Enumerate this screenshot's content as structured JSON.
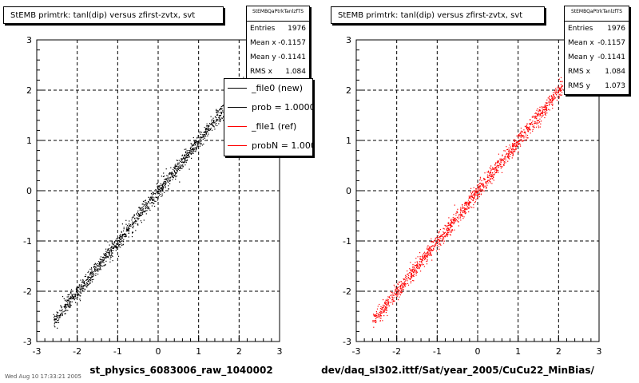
{
  "chart_data": [
    {
      "type": "scatter",
      "title": "StEMB primtrk: tanl(dip) versus zfirst-zvtx, svt",
      "xlabel": "st_physics_6083006_raw_1040002",
      "ylabel": "",
      "xlim": [
        -3,
        3
      ],
      "ylim": [
        -3,
        3
      ],
      "xticks": [
        "-3",
        "-2",
        "-1",
        "0",
        "1",
        "2",
        "3"
      ],
      "yticks": [
        "-3",
        "-2",
        "-1",
        "0",
        "1",
        "2",
        "3"
      ],
      "grid": true,
      "legend_placement": "top-right",
      "series": [
        {
          "name": "_file0 (new)",
          "color": "#000000",
          "x_range": [
            -2.6,
            2.1
          ],
          "trend_slope": 1.0,
          "trend_intercept": 0.0,
          "spread": 0.08
        }
      ],
      "stats": {
        "name": "StEMBQaPtrkTanlzfTS",
        "rows": [
          {
            "label": "Entries",
            "value": "1976"
          },
          {
            "label": "Mean x",
            "value": "-0.1157"
          },
          {
            "label": "Mean y",
            "value": "-0.1141"
          },
          {
            "label": "RMS x",
            "value": "1.084"
          }
        ]
      },
      "legend": [
        {
          "label": "_file0 (new)",
          "color": "#000000"
        },
        {
          "label": "prob = 1.000000",
          "color": "#000000"
        },
        {
          "label": "_file1 (ref)",
          "color": "#ff0000"
        },
        {
          "label": "probN = 1.000000",
          "color": "#ff0000"
        }
      ]
    },
    {
      "type": "scatter",
      "title": "StEMB primtrk: tanl(dip) versus zfirst-zvtx, svt",
      "xlabel": "dev/daq_sl302.ittf/Sat/year_2005/CuCu22_MinBias/",
      "ylabel": "",
      "xlim": [
        -3,
        3
      ],
      "ylim": [
        -3,
        3
      ],
      "xticks": [
        "-3",
        "-2",
        "-1",
        "0",
        "1",
        "2",
        "3"
      ],
      "yticks": [
        "-3",
        "-2",
        "-1",
        "0",
        "1",
        "2",
        "3"
      ],
      "grid": true,
      "series": [
        {
          "name": "_file1 (ref)",
          "color": "#ff0000",
          "x_range": [
            -2.6,
            2.1
          ],
          "trend_slope": 1.0,
          "trend_intercept": 0.0,
          "spread": 0.08
        }
      ],
      "stats": {
        "name": "StEMBQaPtrkTanlzfTS",
        "rows": [
          {
            "label": "Entries",
            "value": "1976"
          },
          {
            "label": "Mean x",
            "value": "-0.1157"
          },
          {
            "label": "Mean y",
            "value": "-0.1141"
          },
          {
            "label": "RMS x",
            "value": "1.084"
          },
          {
            "label": "RMS y",
            "value": "1.073"
          }
        ]
      }
    }
  ],
  "footnote": "Wed Aug 10 17:33:21 2005"
}
